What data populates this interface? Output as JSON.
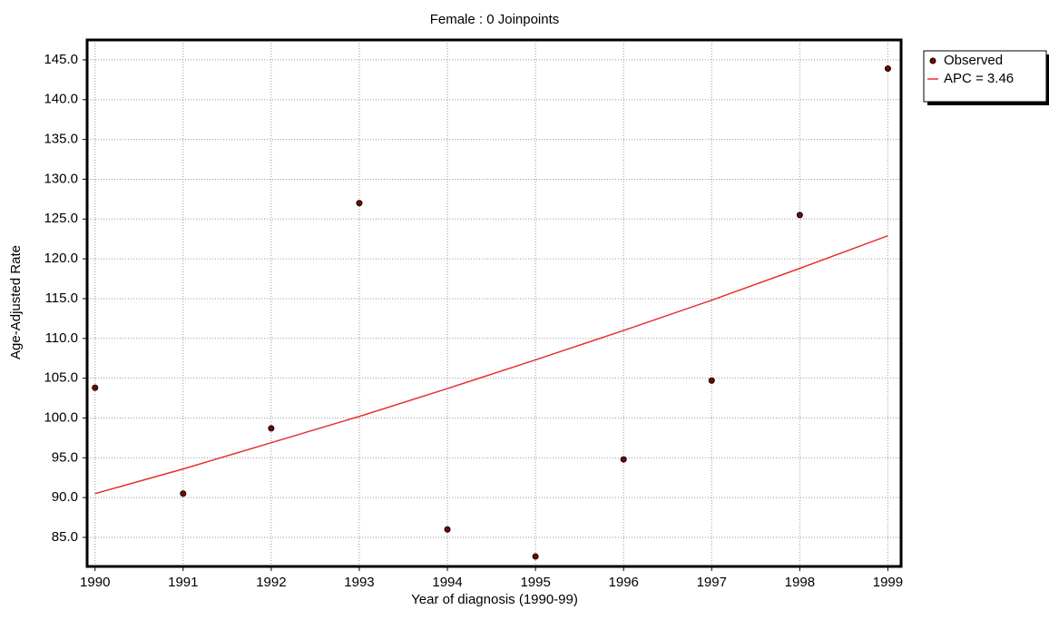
{
  "chart_data": {
    "type": "line",
    "title": "Female : 0 Joinpoints",
    "xlabel": "Year of diagnosis (1990-99)",
    "ylabel": "Age-Adjusted Rate",
    "x": [
      1990,
      1991,
      1992,
      1993,
      1994,
      1995,
      1996,
      1997,
      1998,
      1999
    ],
    "series": [
      {
        "name": "Observed",
        "color": "#800000",
        "style": "markers",
        "values": [
          103.8,
          90.5,
          98.7,
          127.0,
          86.0,
          82.6,
          94.8,
          104.7,
          125.5,
          143.9
        ]
      },
      {
        "name": "APC = 3.46",
        "color": "#e83030",
        "style": "line",
        "values": [
          90.5,
          93.6,
          96.9,
          100.2,
          103.7,
          107.3,
          111.0,
          114.8,
          118.8,
          122.9
        ]
      }
    ],
    "xlim": [
      1989.91,
      1999.15
    ],
    "xticks": [
      1990,
      1991,
      1992,
      1993,
      1994,
      1995,
      1996,
      1997,
      1998,
      1999
    ],
    "ylim": [
      81.35,
      147.5
    ],
    "yticks": [
      {
        "value": 85,
        "label": "85.0"
      },
      {
        "value": 90,
        "label": "90.0"
      },
      {
        "value": 95,
        "label": "95.0"
      },
      {
        "value": 100,
        "label": "100.0"
      },
      {
        "value": 105,
        "label": "105.0"
      },
      {
        "value": 110,
        "label": "110.0"
      },
      {
        "value": 115,
        "label": "115.0"
      },
      {
        "value": 120,
        "label": "120.0"
      },
      {
        "value": 125,
        "label": "125.0"
      },
      {
        "value": 130,
        "label": "130.0"
      },
      {
        "value": 135,
        "label": "135.0"
      },
      {
        "value": 140,
        "label": "140.0"
      },
      {
        "value": 145,
        "label": "145.0"
      }
    ],
    "grid": true,
    "legend": "outside-top-right"
  }
}
